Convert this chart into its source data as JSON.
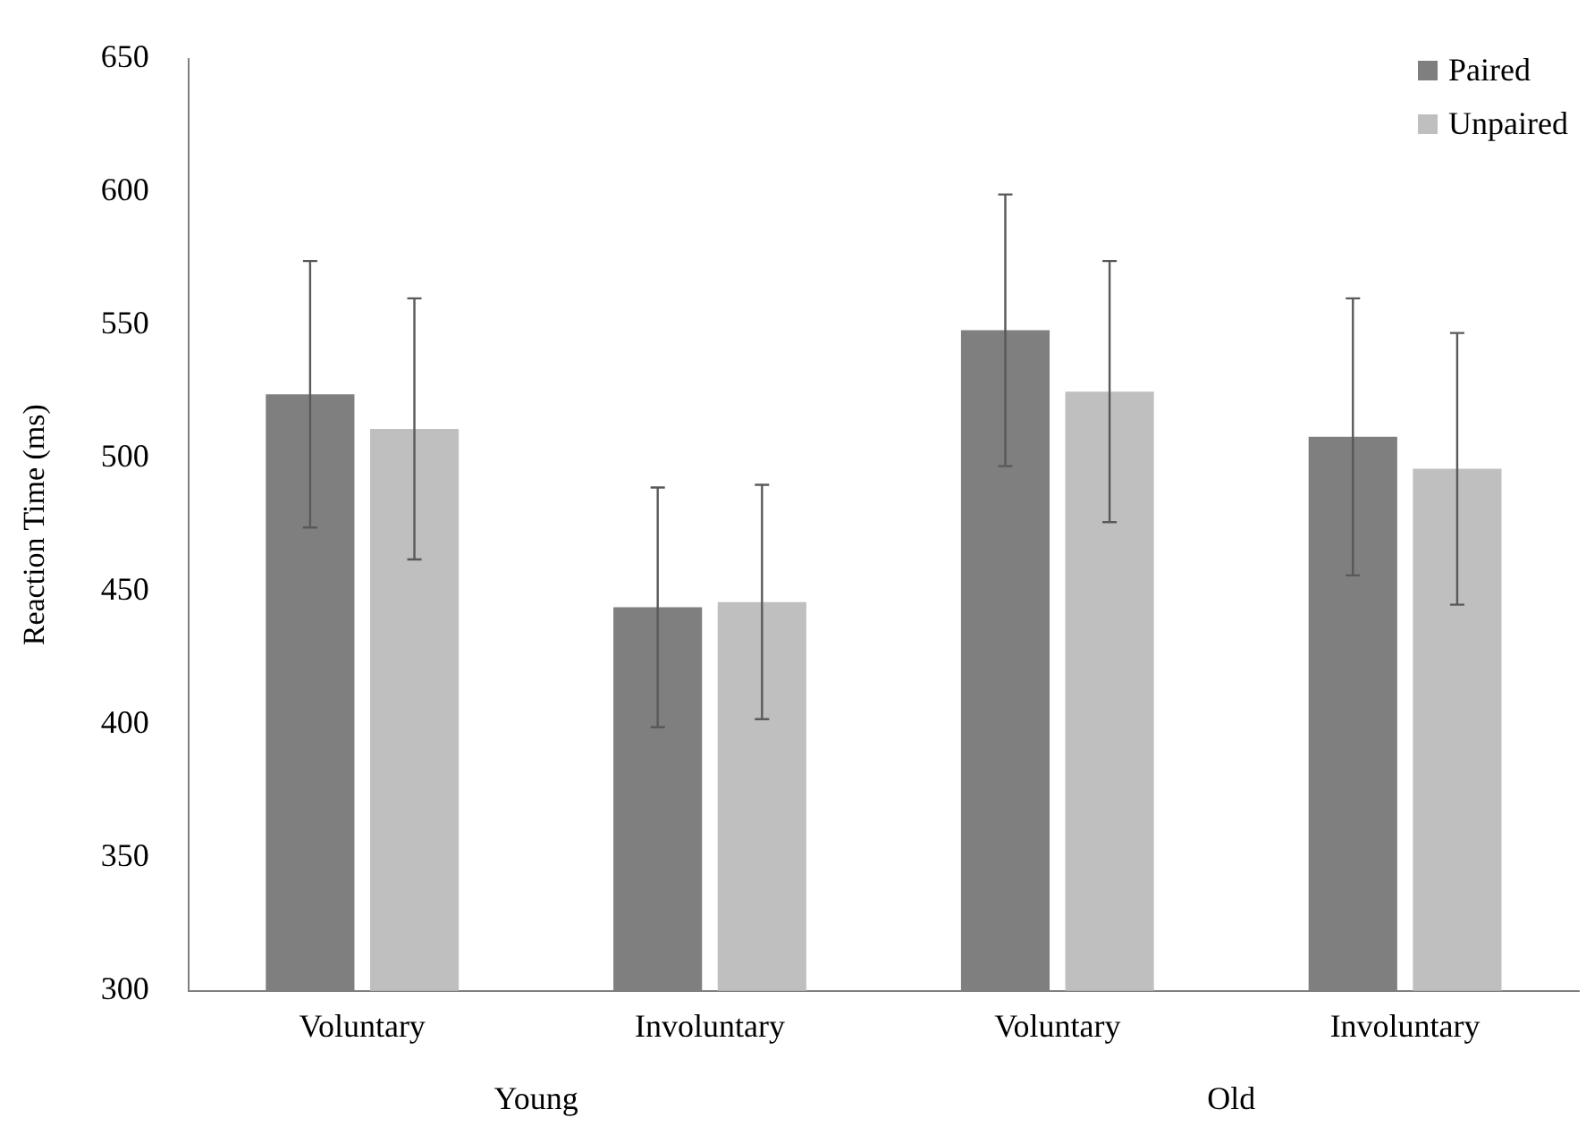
{
  "chart_data": {
    "type": "bar",
    "ylabel": "Reaction Time (ms)",
    "categories": [
      "Voluntary",
      "Involuntary",
      "Voluntary",
      "Involuntary"
    ],
    "annotations": [
      "Young",
      "Old"
    ],
    "series": [
      {
        "name": "Paired",
        "color": "#7f7f7f",
        "values": [
          524,
          444,
          548,
          508
        ],
        "errors": [
          50,
          45,
          51,
          52
        ]
      },
      {
        "name": "Unpaired",
        "color": "#bfbfbf",
        "values": [
          511,
          446,
          525,
          496
        ],
        "errors": [
          49,
          44,
          49,
          51
        ]
      }
    ],
    "ylim": [
      300,
      650
    ],
    "yticks": [
      300,
      350,
      400,
      450,
      500,
      550,
      600,
      650
    ],
    "grid": false,
    "legend": "top right"
  }
}
